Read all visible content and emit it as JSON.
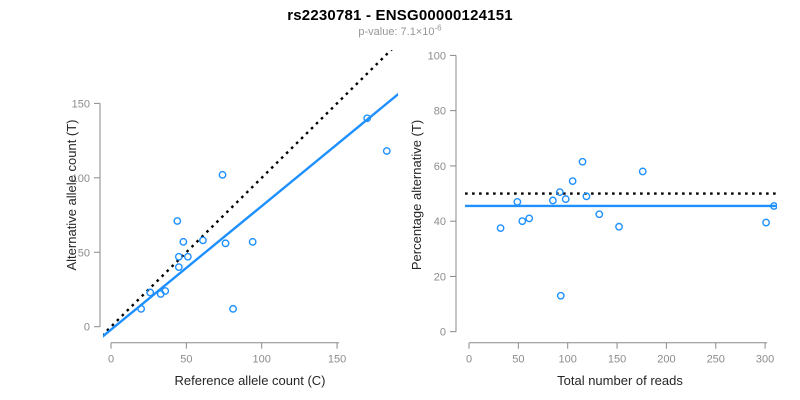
{
  "header": {
    "title": "rs2230781 - ENSG00000124151",
    "pvalue_base": "p-value: 7.1×10",
    "pvalue_exponent": "-6"
  },
  "colors": {
    "point_blue": "#1E90FF",
    "fit_line_blue": "#1E90FF",
    "reference_line_black": "#000000",
    "axis_gray": "#898989",
    "tick_label_gray": "#8C8C8C",
    "axis_title_dark": "#262626",
    "subtitle_gray": "#969696",
    "background": "#FFFFFF"
  },
  "chart_data": [
    {
      "id": "ref-vs-alt-scatter",
      "type": "scatter",
      "title": "",
      "xlabel": "Reference allele count (C)",
      "ylabel": "Alternative allele count (T)",
      "xticks": [
        0,
        50,
        100,
        150
      ],
      "yticks": [
        0,
        50,
        100,
        150
      ],
      "xlim": [
        0,
        190
      ],
      "ylim": [
        0,
        185
      ],
      "grid": false,
      "legend": "none",
      "points": [
        [
          20,
          12
        ],
        [
          26,
          23
        ],
        [
          33,
          22
        ],
        [
          36,
          24
        ],
        [
          45,
          40
        ],
        [
          45,
          47
        ],
        [
          51,
          47
        ],
        [
          48,
          57
        ],
        [
          44,
          71
        ],
        [
          61,
          58
        ],
        [
          76,
          56
        ],
        [
          94,
          57
        ],
        [
          74,
          102
        ],
        [
          81,
          12
        ],
        [
          183,
          118
        ],
        [
          170,
          140
        ]
      ],
      "lines": [
        {
          "name": "identity-line",
          "slope": 1,
          "intercept": 0,
          "style": "dotted",
          "color": "black"
        },
        {
          "name": "fit-line",
          "slope": 0.83,
          "intercept": -2,
          "style": "solid",
          "color": "blue"
        }
      ]
    },
    {
      "id": "reads-vs-percentage-scatter",
      "type": "scatter",
      "title": "",
      "xlabel": "Total number of reads",
      "ylabel": "Percentage alternative (T)",
      "xticks": [
        0,
        50,
        100,
        150,
        200,
        250,
        300
      ],
      "yticks": [
        0,
        20,
        40,
        60,
        80,
        100
      ],
      "xlim": [
        0,
        312
      ],
      "ylim": [
        0,
        100
      ],
      "grid": false,
      "legend": "none",
      "points": [
        [
          32,
          37.5
        ],
        [
          49,
          47
        ],
        [
          54,
          40
        ],
        [
          61,
          41
        ],
        [
          85,
          47.5
        ],
        [
          92,
          50.5
        ],
        [
          98,
          48
        ],
        [
          105,
          54.5
        ],
        [
          115,
          61.5
        ],
        [
          119,
          49
        ],
        [
          132,
          42.5
        ],
        [
          152,
          38
        ],
        [
          176,
          58
        ],
        [
          93,
          13
        ],
        [
          301,
          39.5
        ],
        [
          309,
          45.5
        ]
      ],
      "lines": [
        {
          "name": "expected-50pct-line",
          "slope": 0,
          "intercept": 50,
          "style": "dotted",
          "color": "black"
        },
        {
          "name": "fit-line",
          "slope": 0,
          "intercept": 45.5,
          "style": "solid",
          "color": "blue"
        }
      ]
    }
  ]
}
